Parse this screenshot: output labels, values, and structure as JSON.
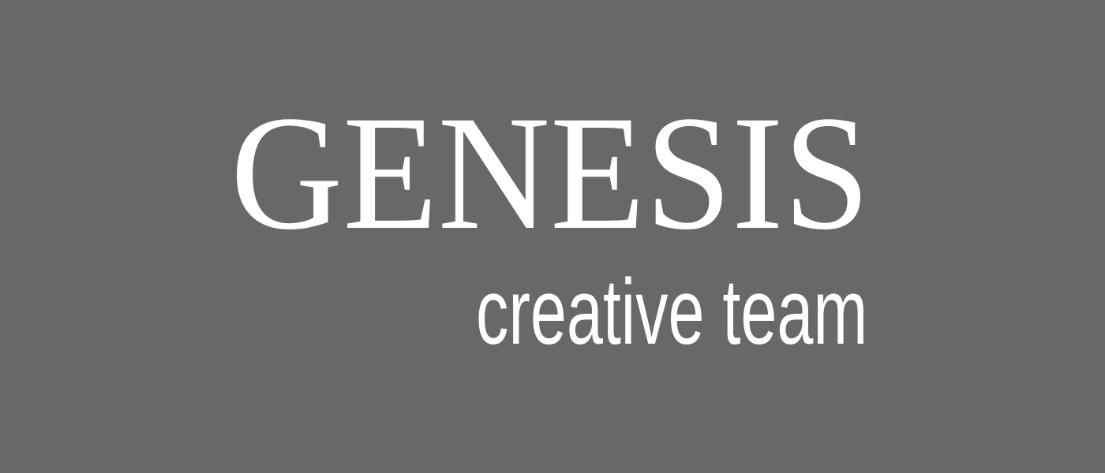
{
  "logo": {
    "brand_name": "GENESIS",
    "tagline": "creative team"
  },
  "colors": {
    "background": "#686868",
    "text": "#ffffff"
  }
}
